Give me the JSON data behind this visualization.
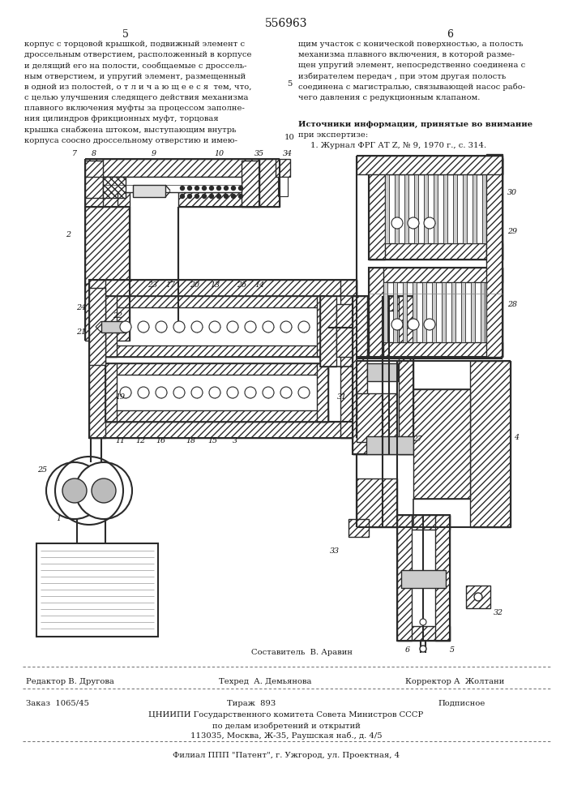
{
  "patent_number": "556963",
  "page_left": "5",
  "page_right": "6",
  "text_left_col": [
    "корпус с торцовой крышкой, подвижный элемент с",
    "дроссельным отверстием, расположенный в корпусе",
    "и делящий его на полости, сообщаемые с дроссель-",
    "ным отверстием, и упругий элемент, размещенный",
    "в одной из полостей, о т л и ч а ю щ е е с я  тем, что,",
    "с целью улучшения следящего действия механизма",
    "плавного включения муфты за процессом заполне-",
    "ния цилиндров фрикционных муфт, торцовая",
    "крышка снабжена штоком, выступающим внутрь",
    "корпуса соосно дроссельному отверстию и имею-"
  ],
  "text_right_col": [
    "щим участок с конической поверхностью, а полость",
    "механизма плавного включения, в которой разме-",
    "щен упругий элемент, непосредственно соединена с",
    "избирателем передач , при этом другая полость",
    "соединена с магистралью, связывающей насос рабо-",
    "чего давления с редукционным клапаном."
  ],
  "sources_header": "Источники информации, принятые во внимание",
  "sources_subheader": "при экспертизе:",
  "source_1": "1. Журнал ФРГ АТ Z, № 9, 1970 г., с. 314.",
  "sostavitel_label": "Составитель  В. Аравин",
  "editor_label": "Редактор В. Другова",
  "techred_label": "Техред  А. Демьянова",
  "corrector_label": "Корректор А  Жолтани",
  "order_label": "Заказ  1065/45",
  "tirazh_label": "Тираж  893",
  "podpisnoe_label": "Подписное",
  "org_line1": "ЦНИИПИ Государственного комитета Совета Министров СССР",
  "org_line2": "по делам изобретений и открытий",
  "org_line3": "113035, Москва, Ж-35, Раушская наб., д. 4/5",
  "filial_line": "Филиал ППП \"Патент\", г. Ужгород, ул. Проектная, 4",
  "text_color": "#1a1a1a",
  "hatch_density": 4,
  "ec": "#2a2a2a"
}
